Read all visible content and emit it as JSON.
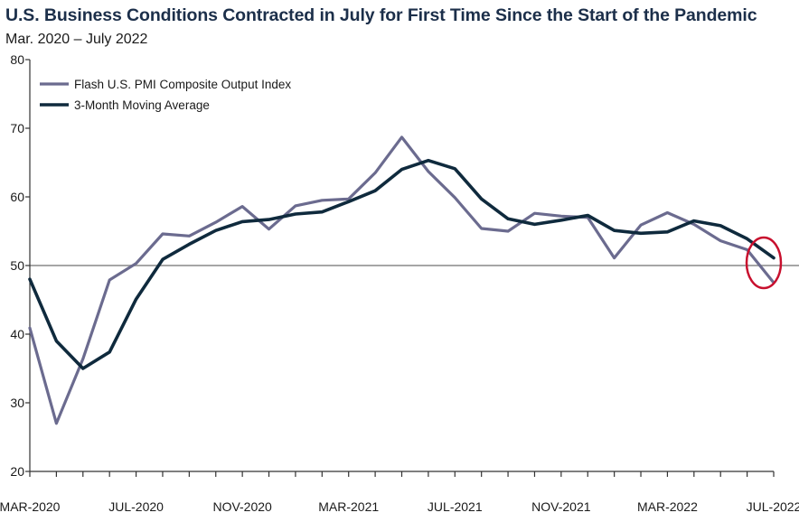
{
  "chart_data": {
    "type": "line",
    "title": "U.S. Business Conditions Contracted in July for First Time Since the Start of the Pandemic",
    "subtitle": "Mar. 2020 – July 2022",
    "xlabel": "",
    "ylabel": "",
    "ylim": [
      20,
      80
    ],
    "yticks": [
      20,
      30,
      40,
      50,
      60,
      70,
      80
    ],
    "x": [
      "2020-03",
      "2020-04",
      "2020-05",
      "2020-06",
      "2020-07",
      "2020-08",
      "2020-09",
      "2020-10",
      "2020-11",
      "2020-12",
      "2021-01",
      "2021-02",
      "2021-03",
      "2021-04",
      "2021-05",
      "2021-06",
      "2021-07",
      "2021-08",
      "2021-09",
      "2021-10",
      "2021-11",
      "2021-12",
      "2022-01",
      "2022-02",
      "2022-03",
      "2022-04",
      "2022-05",
      "2022-06",
      "2022-07"
    ],
    "xtick_labels": [
      {
        "x": "2020-03",
        "label": "MAR-2020"
      },
      {
        "x": "2020-07",
        "label": "JUL-2020"
      },
      {
        "x": "2020-11",
        "label": "NOV-2020"
      },
      {
        "x": "2021-03",
        "label": "MAR-2021"
      },
      {
        "x": "2021-07",
        "label": "JUL-2021"
      },
      {
        "x": "2021-11",
        "label": "NOV-2021"
      },
      {
        "x": "2022-03",
        "label": "MAR-2022"
      },
      {
        "x": "2022-07",
        "label": "JUL-2022"
      }
    ],
    "reference_line": {
      "y": 50,
      "color": "#a6a6a6"
    },
    "highlight": {
      "x": "2022-07",
      "y": 50,
      "shape": "ellipse",
      "color": "#c8102e"
    },
    "legend_placement": "top-left",
    "grid": false,
    "series": [
      {
        "name": "Flash U.S. PMI Composite Output Index",
        "color": "#6b6b8f",
        "values": [
          40.9,
          27.0,
          36.4,
          47.9,
          50.3,
          54.6,
          54.3,
          56.3,
          58.6,
          55.3,
          58.7,
          59.5,
          59.7,
          63.5,
          68.7,
          63.7,
          59.9,
          55.4,
          55.0,
          57.6,
          57.2,
          57.0,
          51.1,
          55.9,
          57.7,
          56.0,
          53.6,
          52.3,
          47.5
        ]
      },
      {
        "name": "3-Month Moving Average",
        "color": "#0f2a3d",
        "values": [
          48.0,
          39.0,
          35.0,
          37.4,
          45.1,
          50.9,
          53.1,
          55.1,
          56.4,
          56.7,
          57.5,
          57.8,
          59.3,
          60.9,
          64.0,
          65.3,
          64.1,
          59.7,
          56.8,
          56.0,
          56.6,
          57.3,
          55.1,
          54.7,
          54.9,
          56.5,
          55.8,
          53.9,
          51.1
        ]
      }
    ]
  }
}
